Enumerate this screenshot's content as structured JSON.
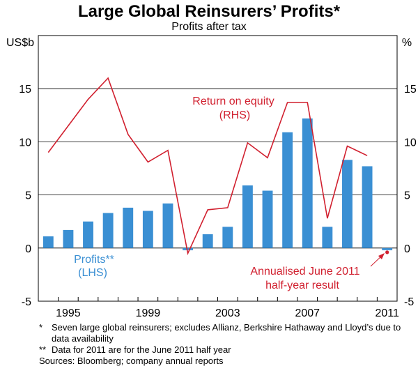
{
  "chart_data": {
    "type": "bar+line",
    "title": "Large Global Reinsurers’ Profits*",
    "subtitle": "Profits after tax",
    "left_unit": "US$b",
    "right_unit": "%",
    "ylim": [
      -5,
      20
    ],
    "yticks": [
      -5,
      0,
      5,
      10,
      15
    ],
    "ytick_labels": [
      "-5",
      "0",
      "5",
      "10",
      "15"
    ],
    "x_tick_labels": [
      "1995",
      "1999",
      "2003",
      "2007",
      "2011"
    ],
    "x_tick_years": [
      1995,
      1999,
      2003,
      2007,
      2011
    ],
    "x_first_year": 1994,
    "x_last_year": 2011,
    "series": [
      {
        "name": "Profits",
        "kind": "bar",
        "axis": "left",
        "color": "#3a8fd3",
        "x": [
          1994,
          1995,
          1996,
          1997,
          1998,
          1999,
          2000,
          2001,
          2002,
          2003,
          2004,
          2005,
          2006,
          2007,
          2008,
          2009,
          2010,
          2011
        ],
        "values": [
          1.1,
          1.7,
          2.5,
          3.3,
          3.8,
          3.5,
          4.2,
          -0.2,
          1.3,
          2.0,
          5.9,
          5.4,
          10.9,
          12.2,
          2.0,
          8.3,
          7.7,
          -0.2
        ]
      },
      {
        "name": "Return on equity",
        "kind": "line",
        "axis": "right",
        "color": "#d1202f",
        "x": [
          1994,
          1995,
          1996,
          1997,
          1998,
          1999,
          2000,
          2001,
          2002,
          2003,
          2004,
          2005,
          2006,
          2007,
          2008,
          2009,
          2010
        ],
        "values": [
          9.0,
          11.5,
          14.0,
          16.0,
          10.7,
          8.1,
          9.2,
          -0.5,
          3.6,
          3.8,
          9.9,
          8.5,
          13.7,
          13.7,
          2.8,
          9.6,
          8.7
        ]
      },
      {
        "name": "Annualised June 2011 half-year result",
        "kind": "point",
        "axis": "right",
        "color": "#d1202f",
        "x": [
          2011
        ],
        "values": [
          -0.4
        ]
      }
    ],
    "annotations": {
      "roe_label_1": "Return on equity",
      "roe_label_2": "(RHS)",
      "profits_label_1": "Profits**",
      "profits_label_2": "(LHS)",
      "annual_label_1": "Annualised June 2011",
      "annual_label_2": "half-year result"
    }
  },
  "footnotes": [
    {
      "mark": "*",
      "text": "Seven large global reinsurers; excludes Allianz, Berkshire Hathaway and Lloyd’s due to data availability"
    },
    {
      "mark": "**",
      "text": "Data for 2011 are for the June 2011 half year"
    }
  ],
  "sources": "Sources: Bloomberg; company annual reports"
}
